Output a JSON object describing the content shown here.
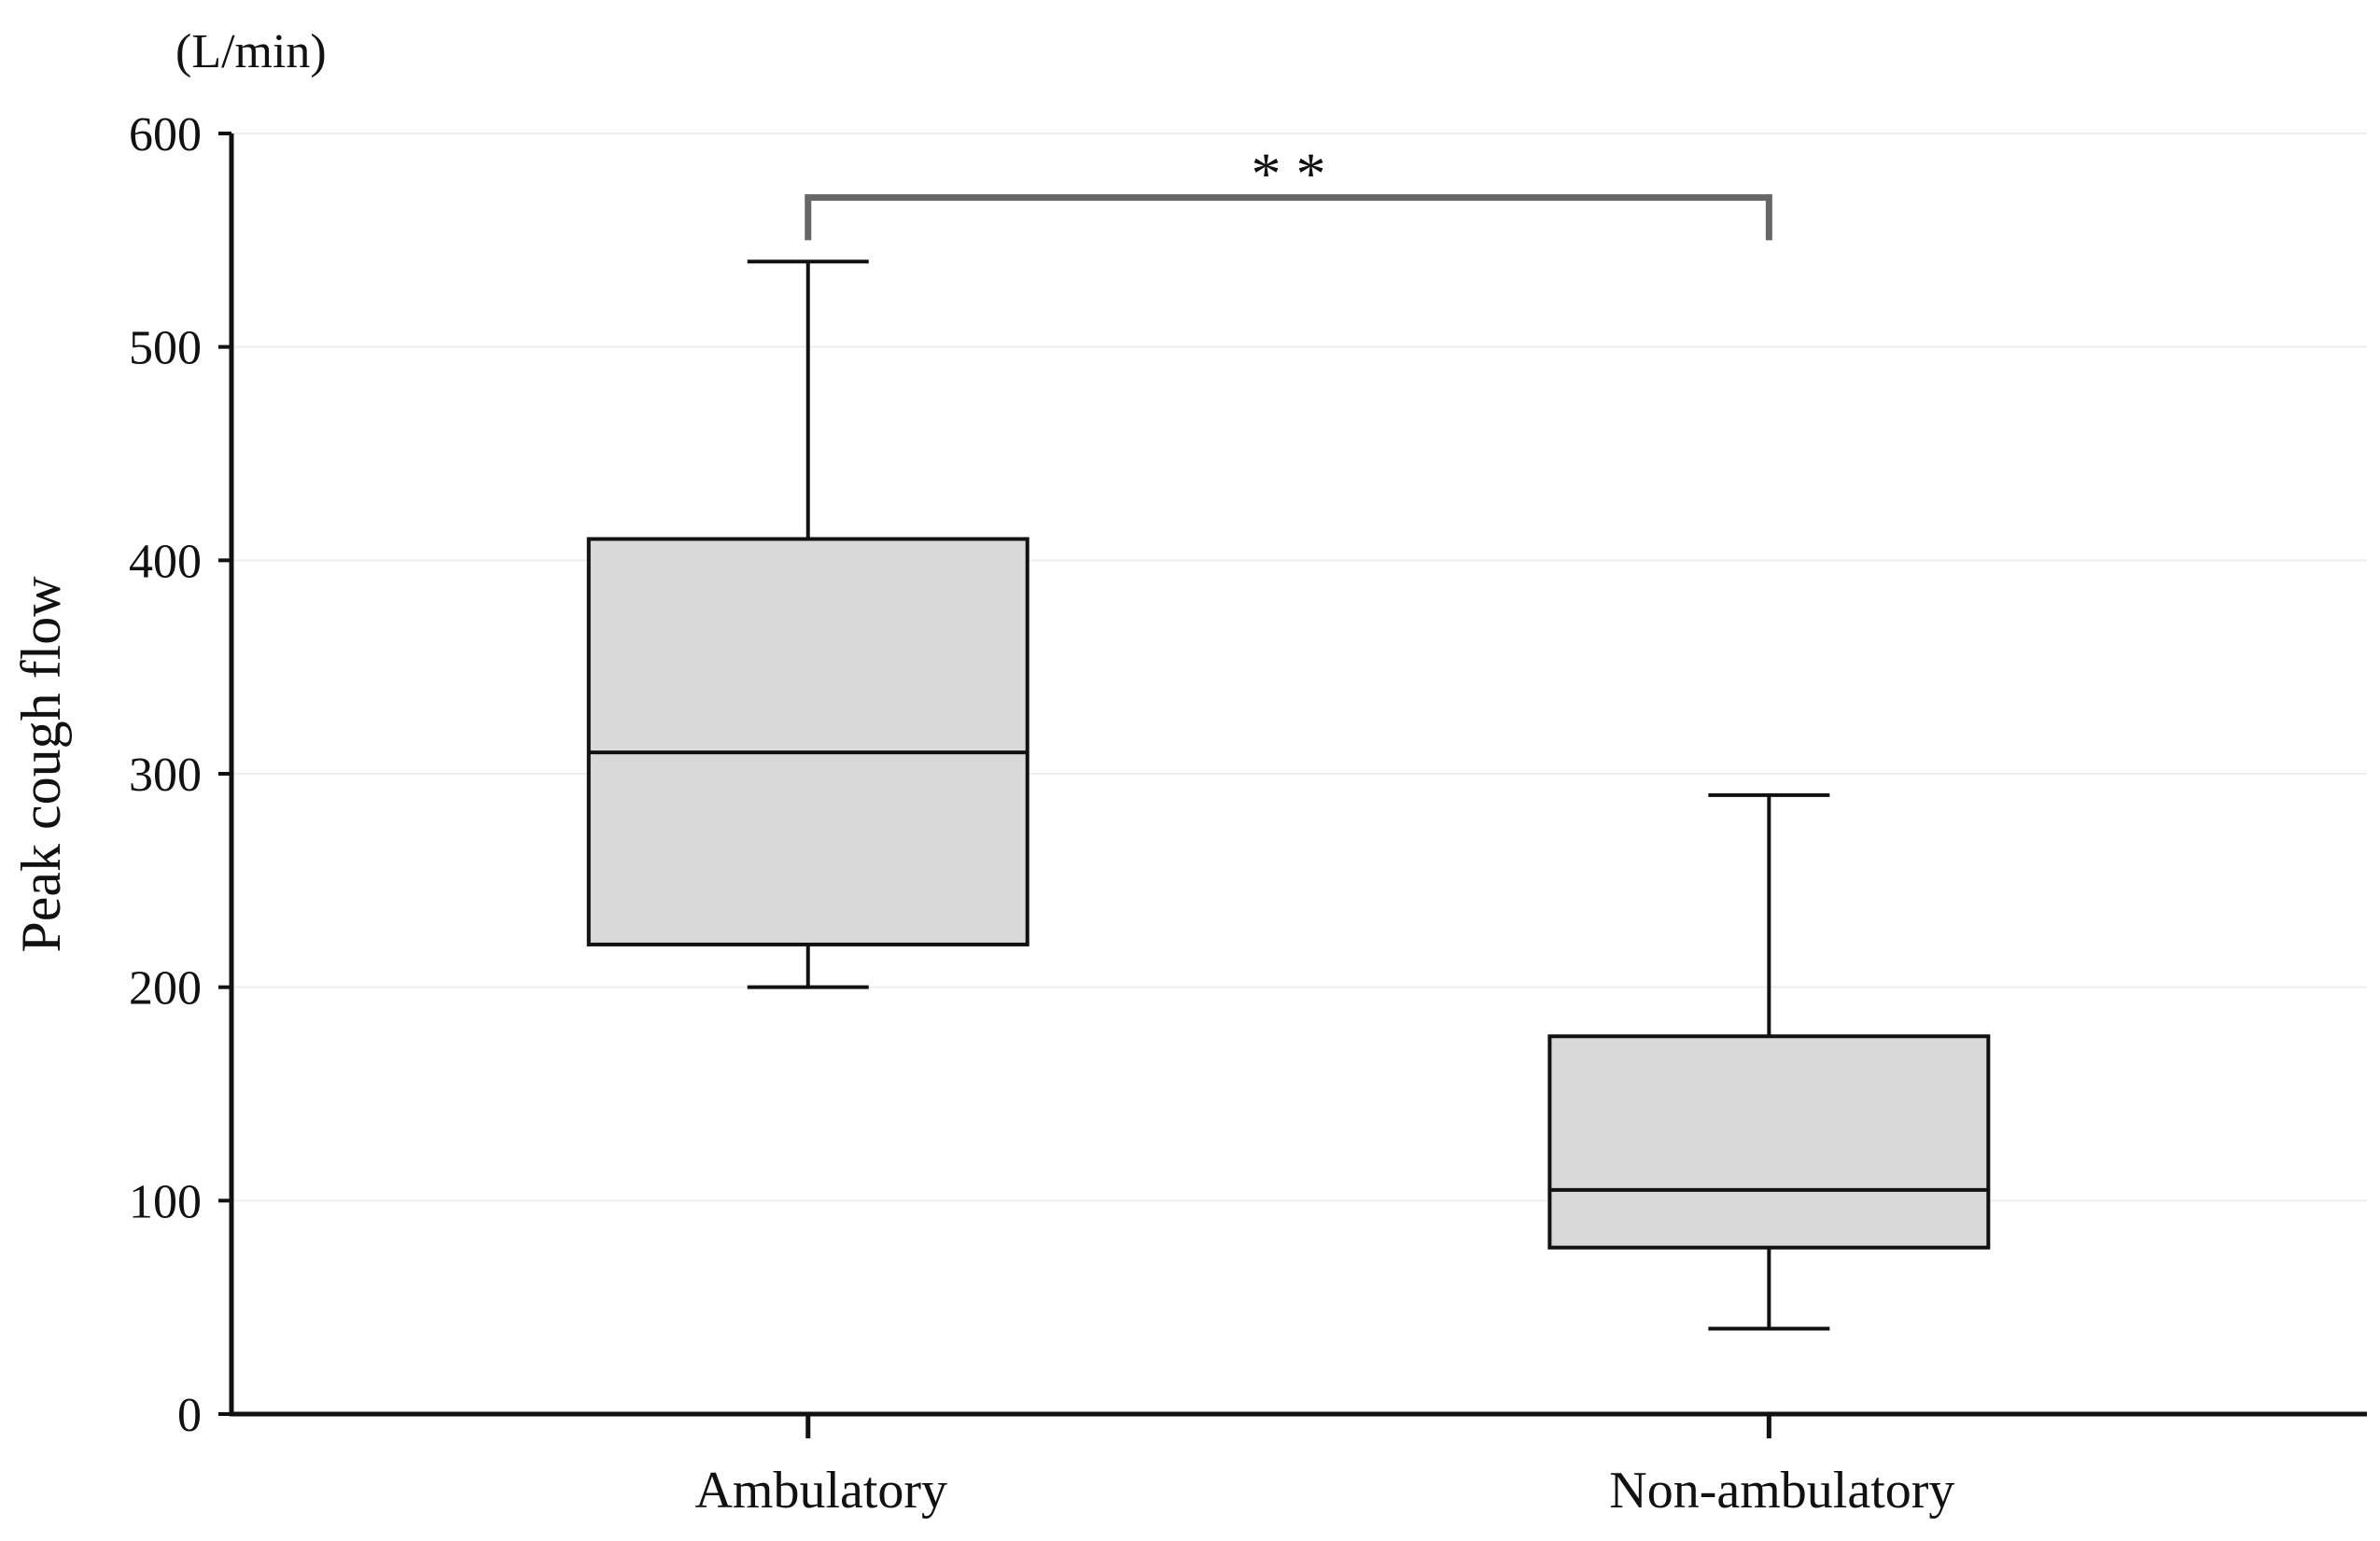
{
  "chart_data": {
    "type": "box",
    "unit": "(L/min)",
    "ylabel": "Peak cough flow",
    "xlabel": "",
    "ylim": [
      0,
      600
    ],
    "yticks": [
      0,
      100,
      200,
      300,
      400,
      500,
      600
    ],
    "ytick_labels": [
      "0",
      "100",
      "200",
      "300",
      "400",
      "500",
      "600"
    ],
    "grid": true,
    "categories": [
      "Ambulatory",
      "Non-ambulatory"
    ],
    "boxes": [
      {
        "category": "Ambulatory",
        "min": 200,
        "q1": 220,
        "median": 310,
        "q3": 410,
        "max": 540
      },
      {
        "category": "Non-ambulatory",
        "min": 40,
        "q1": 78,
        "median": 105,
        "q3": 177,
        "max": 290
      }
    ],
    "significance": {
      "label": "* *",
      "from": 0,
      "to": 1,
      "y": 570,
      "drop_to": 550
    },
    "colors": {
      "box_fill": "#d9d9d9",
      "stroke": "#111111",
      "bracket": "#666666",
      "grid": "#eeeeee"
    }
  }
}
